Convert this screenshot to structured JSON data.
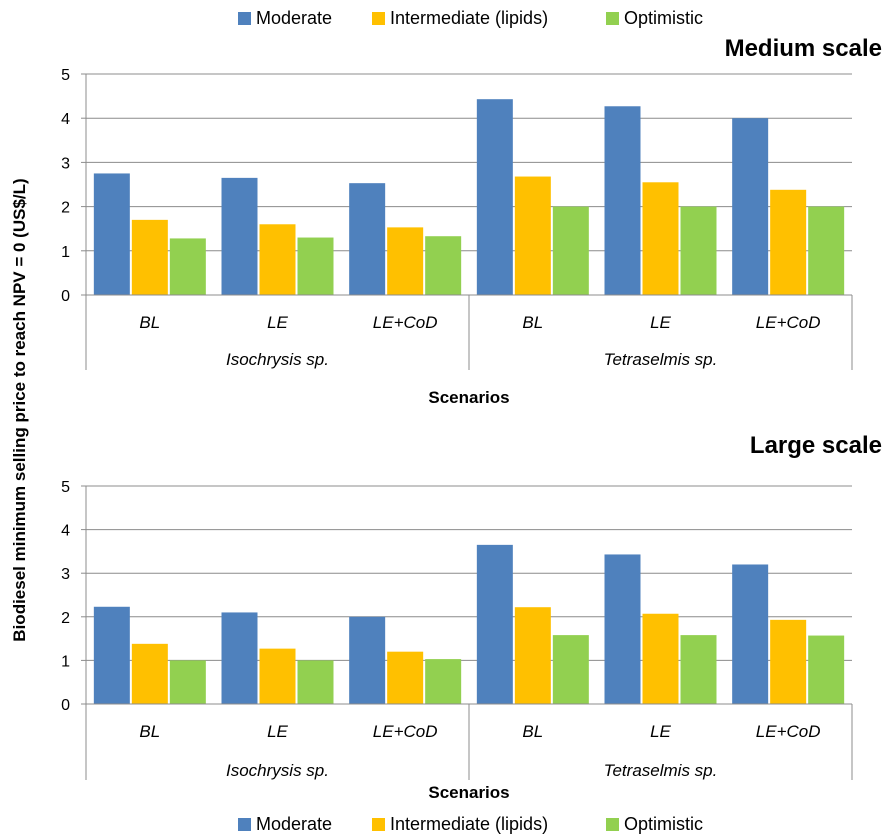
{
  "legend": {
    "top": [
      "Moderate",
      "Intermediate (lipids)",
      "Optimistic"
    ],
    "bottom": [
      "Moderate",
      "Intermediate (lipids)",
      "Optimistic"
    ]
  },
  "shared_ylabel": "Biodiesel minimum selling price to reach NPV = 0 (US$/L)",
  "colors": {
    "Moderate": "#4F81BD",
    "Intermediate (lipids)": "#FFC000",
    "Optimistic": "#92D050"
  },
  "chart_data": [
    {
      "type": "bar",
      "title": "Medium scale",
      "xlabel": "Scenarios",
      "ylim": [
        0,
        5
      ],
      "yticks": [
        "0",
        "1",
        "2",
        "3",
        "4",
        "5"
      ],
      "categories": [
        "BL",
        "LE",
        "LE+CoD",
        "BL",
        "LE",
        "LE+CoD"
      ],
      "groups": [
        {
          "label": "Isochrysis sp.",
          "count": 3
        },
        {
          "label": "Tetraselmis sp.",
          "count": 3
        }
      ],
      "series": [
        {
          "name": "Moderate",
          "values": [
            2.75,
            2.65,
            2.53,
            4.43,
            4.27,
            4.0
          ]
        },
        {
          "name": "Intermediate (lipids)",
          "values": [
            1.7,
            1.6,
            1.53,
            2.68,
            2.55,
            2.38
          ]
        },
        {
          "name": "Optimistic",
          "values": [
            1.28,
            1.3,
            1.33,
            2.0,
            2.0,
            2.0
          ]
        }
      ]
    },
    {
      "type": "bar",
      "title": "Large scale",
      "xlabel": "Scenarios",
      "ylim": [
        0,
        5
      ],
      "yticks": [
        "0",
        "1",
        "2",
        "3",
        "4",
        "5"
      ],
      "categories": [
        "BL",
        "LE",
        "LE+CoD",
        "BL",
        "LE",
        "LE+CoD"
      ],
      "groups": [
        {
          "label": "Isochrysis sp.",
          "count": 3
        },
        {
          "label": "Tetraselmis sp.",
          "count": 3
        }
      ],
      "series": [
        {
          "name": "Moderate",
          "values": [
            2.23,
            2.1,
            2.0,
            3.65,
            3.43,
            3.2
          ]
        },
        {
          "name": "Intermediate (lipids)",
          "values": [
            1.38,
            1.27,
            1.2,
            2.22,
            2.07,
            1.93
          ]
        },
        {
          "name": "Optimistic",
          "values": [
            1.0,
            1.0,
            1.03,
            1.58,
            1.58,
            1.57
          ]
        }
      ]
    }
  ]
}
